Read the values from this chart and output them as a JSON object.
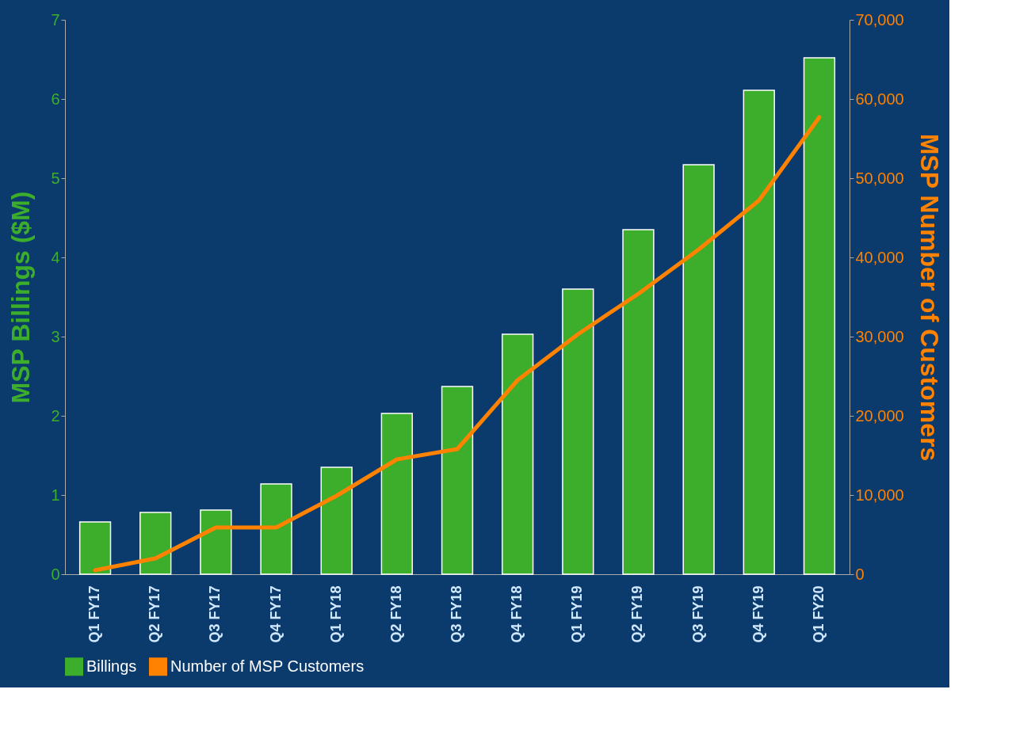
{
  "chart_data": {
    "type": "bar",
    "categories": [
      "Q1 FY17",
      "Q2 FY17",
      "Q3 FY17",
      "Q4 FY17",
      "Q1 FY18",
      "Q2 FY18",
      "Q3 FY18",
      "Q4 FY18",
      "Q1 FY19",
      "Q2 FY19",
      "Q3 FY19",
      "Q4 FY19",
      "Q1 FY20"
    ],
    "ylabel": "MSP Billings ($M)",
    "y2label": "MSP Number of Customers",
    "ylim": [
      0,
      7
    ],
    "yticks": [
      0,
      1,
      2,
      3,
      4,
      5,
      6,
      7
    ],
    "y2lim": [
      0,
      70000
    ],
    "y2ticks": [
      0,
      {
        "value": 10000,
        "label": "10,000"
      },
      {
        "value": 20000,
        "label": "20,000"
      },
      {
        "value": 30000,
        "label": "30,000"
      },
      {
        "value": 40000,
        "label": "40,000"
      },
      {
        "value": 50000,
        "label": "50,000"
      },
      {
        "value": 60000,
        "label": "60,000"
      },
      {
        "value": 70000,
        "label": "70,000"
      }
    ],
    "series": [
      {
        "name": "Billings",
        "color": "#3dae2b",
        "values": [
          0.66,
          0.78,
          0.81,
          1.14,
          1.35,
          2.03,
          2.37,
          3.03,
          3.6,
          4.35,
          5.17,
          6.11,
          6.52
        ]
      },
      {
        "name": "Number of MSP Customers",
        "type": "line",
        "axis": "y2",
        "color": "#ff8200",
        "values": [
          500,
          2000,
          5900,
          5900,
          9900,
          14500,
          15800,
          24500,
          30300,
          35400,
          41000,
          47200,
          57700
        ]
      }
    ],
    "legend": "bottom",
    "grid": false
  }
}
